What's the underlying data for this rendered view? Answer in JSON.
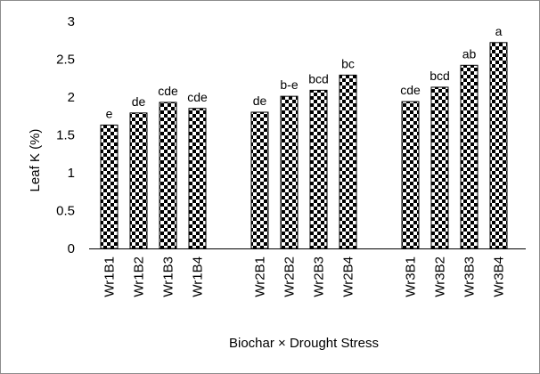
{
  "chart_data": {
    "type": "bar",
    "title": "",
    "xlabel": "Biochar × Drought Stress",
    "ylabel": "Leaf K (%)",
    "ylim": [
      0,
      3
    ],
    "yticks": [
      "0",
      "0.5",
      "1",
      "1.5",
      "2",
      "2.5",
      "3"
    ],
    "grid": false,
    "legend": "none",
    "bar_pattern": "black-and-white checkerboard",
    "groups": [
      {
        "categories": [
          "Wr1B1",
          "Wr1B2",
          "Wr1B3",
          "Wr1B4"
        ],
        "values": [
          1.63,
          1.79,
          1.93,
          1.85
        ],
        "letters": [
          "e",
          "de",
          "cde",
          "cde"
        ]
      },
      {
        "categories": [
          "Wr2B1",
          "Wr2B2",
          "Wr2B3",
          "Wr2B4"
        ],
        "values": [
          1.8,
          2.01,
          2.09,
          2.29
        ],
        "letters": [
          "de",
          "b-e",
          "bcd",
          "bc"
        ]
      },
      {
        "categories": [
          "Wr3B1",
          "Wr3B2",
          "Wr3B3",
          "Wr3B4"
        ],
        "values": [
          1.94,
          2.13,
          2.42,
          2.72
        ],
        "letters": [
          "cde",
          "bcd",
          "ab",
          "a"
        ]
      }
    ]
  }
}
